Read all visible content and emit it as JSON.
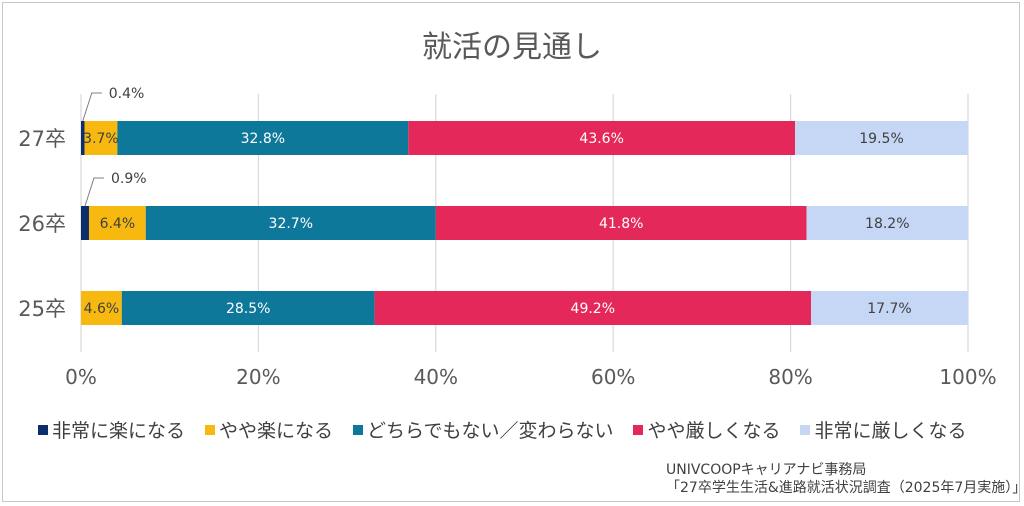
{
  "title": "就活の見通し",
  "source": {
    "line1": "UNIVCOOPキャリアナビ事務局",
    "line2": "「27卒学生生活&進路就活状況調査（2025年7月実施）」"
  },
  "chart_data": {
    "type": "bar",
    "orientation": "horizontal",
    "stacked": true,
    "title": "就活の見通し",
    "categories": [
      "27卒",
      "26卒",
      "25卒"
    ],
    "xlim": [
      0,
      100
    ],
    "x_ticks": [
      "0%",
      "20%",
      "40%",
      "60%",
      "80%",
      "100%"
    ],
    "grid": true,
    "legend_position": "bottom",
    "series": [
      {
        "name": "非常に楽になる",
        "color": "#0d2d6c",
        "values": [
          0.4,
          0.9,
          0
        ],
        "labels": [
          "0.4%",
          "0.9%",
          ""
        ],
        "text_color": "#404040"
      },
      {
        "name": "やや楽になる",
        "color": "#f7b90f",
        "values": [
          3.7,
          6.4,
          4.6
        ],
        "labels": [
          "3.7%",
          "6.4%",
          "4.6%"
        ],
        "text_color": "#404040"
      },
      {
        "name": "どちらでもない／変わらない",
        "color": "#0e789b",
        "values": [
          32.8,
          32.7,
          28.5
        ],
        "labels": [
          "32.8%",
          "32.7%",
          "28.5%"
        ],
        "text_color": "#ffffff"
      },
      {
        "name": "やや厳しくなる",
        "color": "#e4285a",
        "values": [
          43.6,
          41.8,
          49.2
        ],
        "labels": [
          "43.6%",
          "41.8%",
          "49.2%"
        ],
        "text_color": "#ffffff"
      },
      {
        "name": "非常に厳しくなる",
        "color": "#c5d7f5",
        "values": [
          19.5,
          18.2,
          17.7
        ],
        "labels": [
          "19.5%",
          "18.2%",
          "17.7%"
        ],
        "text_color": "#404040"
      }
    ]
  }
}
